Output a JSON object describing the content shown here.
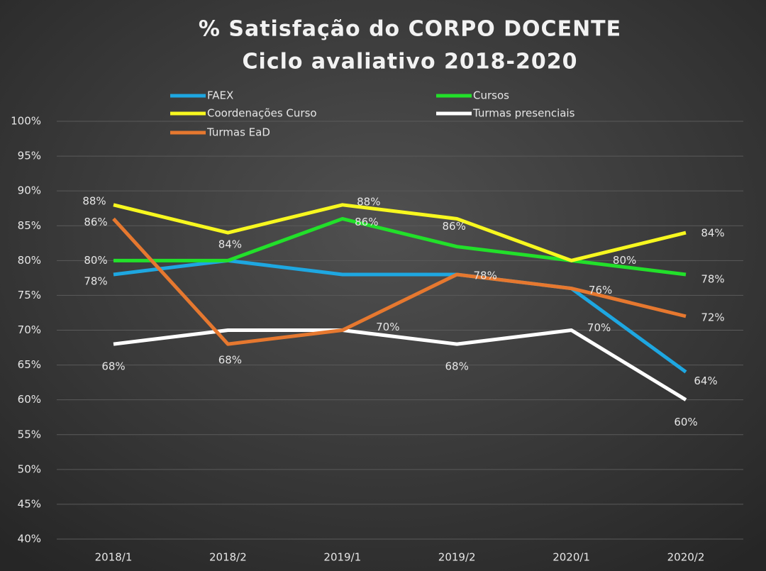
{
  "chart_data": {
    "type": "line",
    "title": "% Satisfação do CORPO DOCENTE",
    "subtitle": "Ciclo avaliativo 2018-2020",
    "categories": [
      "2018/1",
      "2018/2",
      "2019/1",
      "2019/2",
      "2020/1",
      "2020/2"
    ],
    "series": [
      {
        "name": "FAEX",
        "color": "#1ea7e1",
        "values": [
          78,
          80,
          78,
          78,
          76,
          64
        ],
        "value_labels": [
          "78%",
          null,
          null,
          null,
          null,
          "64%"
        ]
      },
      {
        "name": "Cursos",
        "color": "#22e02a",
        "values": [
          80,
          80,
          86,
          82,
          80,
          78
        ],
        "value_labels": [
          "80%",
          null,
          "86%",
          null,
          "80%",
          "78%"
        ]
      },
      {
        "name": "Coordenações Curso",
        "color": "#f7f71f",
        "values": [
          88,
          84,
          88,
          86,
          80,
          84
        ],
        "value_labels": [
          "88%",
          "84%",
          "88%",
          "86%",
          null,
          "84%"
        ]
      },
      {
        "name": "Turmas presenciais",
        "color": "#ffffff",
        "values": [
          68,
          70,
          70,
          68,
          70,
          60
        ],
        "value_labels": [
          "68%",
          null,
          "70%",
          "68%",
          "70%",
          "60%"
        ]
      },
      {
        "name": "Turmas EaD",
        "color": "#e6782f",
        "values": [
          86,
          68,
          70,
          78,
          76,
          72
        ],
        "value_labels": [
          "86%",
          "68%",
          null,
          "78%",
          "76%",
          "72%"
        ]
      }
    ],
    "ylim": [
      40,
      100
    ],
    "yticks": [
      {
        "value": 40,
        "label": "40%"
      },
      {
        "value": 45,
        "label": "45%"
      },
      {
        "value": 50,
        "label": "50%"
      },
      {
        "value": 55,
        "label": "55%"
      },
      {
        "value": 60,
        "label": "60%"
      },
      {
        "value": 65,
        "label": "65%"
      },
      {
        "value": 70,
        "label": "70%"
      },
      {
        "value": 75,
        "label": "75%"
      },
      {
        "value": 80,
        "label": "80%"
      },
      {
        "value": 85,
        "label": "85%"
      },
      {
        "value": 90,
        "label": "90%"
      },
      {
        "value": 95,
        "label": "95%"
      },
      {
        "value": 100,
        "label": "100%"
      }
    ],
    "grid": true
  }
}
